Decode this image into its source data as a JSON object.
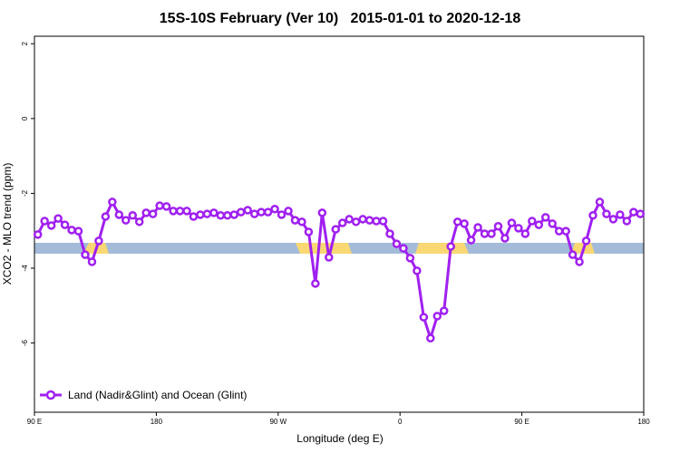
{
  "chart_data": {
    "type": "line",
    "title": "15S-10S February (Ver 10)   2015-01-01 to 2020-12-18",
    "x_label": "Longitude (deg E)",
    "y_label": "XCO2 - MLO trend (ppm)",
    "xlim": [
      90,
      540
    ],
    "xticks": [
      {
        "value": 90,
        "label": "90 E"
      },
      180,
      {
        "value": 270,
        "label": "90 W"
      },
      {
        "value": 360,
        "label": "0"
      },
      {
        "value": 450,
        "label": "90 E"
      },
      {
        "value": 540,
        "label": "180"
      }
    ],
    "ylim": [
      -7.85,
      2.2
    ],
    "yticks": [
      2,
      0,
      -2,
      -4,
      -6
    ],
    "legend": "bottom-left",
    "x": [
      92.5,
      97.5,
      102.5,
      107.5,
      112.5,
      117.5,
      122.5,
      127.5,
      132.5,
      137.5,
      142.5,
      147.5,
      152.5,
      157.5,
      162.5,
      167.5,
      172.5,
      177.5,
      182.5,
      187.5,
      192.5,
      197.5,
      202.5,
      207.5,
      212.5,
      217.5,
      222.5,
      227.5,
      232.5,
      237.5,
      242.5,
      247.5,
      252.5,
      257.5,
      262.5,
      267.5,
      272.5,
      277.5,
      282.5,
      287.5,
      292.5,
      297.5,
      302.5,
      307.5,
      312.5,
      317.5,
      322.5,
      327.5,
      332.5,
      337.5,
      342.5,
      347.5,
      352.5,
      357.5,
      362.5,
      367.5,
      372.5,
      377.5,
      382.5,
      387.5,
      392.5,
      397.5,
      402.5,
      407.5,
      412.5,
      417.5,
      422.5,
      427.5,
      432.5,
      437.5,
      442.5,
      447.5,
      452.5,
      457.5,
      462.5,
      467.5,
      472.5,
      477.5,
      482.5,
      487.5,
      492.5,
      497.5,
      502.5,
      507.5,
      512.5,
      517.5,
      522.5,
      527.5,
      532.5,
      537.5
    ],
    "series": [
      {
        "name": "Land (Nadir&Glint) and Ocean (Glint)",
        "color": "#a020f0",
        "values": [
          -3.1,
          -2.74,
          -2.86,
          -2.67,
          -2.84,
          -2.98,
          -3.01,
          -3.64,
          -3.83,
          -3.27,
          -2.62,
          -2.23,
          -2.57,
          -2.72,
          -2.59,
          -2.76,
          -2.52,
          -2.55,
          -2.33,
          -2.35,
          -2.47,
          -2.47,
          -2.47,
          -2.62,
          -2.57,
          -2.55,
          -2.52,
          -2.59,
          -2.59,
          -2.57,
          -2.5,
          -2.45,
          -2.55,
          -2.5,
          -2.5,
          -2.42,
          -2.57,
          -2.47,
          -2.72,
          -2.76,
          -3.03,
          -4.41,
          -2.52,
          -3.71,
          -2.96,
          -2.79,
          -2.69,
          -2.76,
          -2.69,
          -2.72,
          -2.74,
          -2.74,
          -3.08,
          -3.35,
          -3.47,
          -3.73,
          -4.07,
          -5.31,
          -5.87,
          -5.28,
          -5.14,
          -3.42,
          -2.76,
          -2.81,
          -3.25,
          -2.91,
          -3.08,
          -3.08,
          -2.88,
          -3.2,
          -2.79,
          -2.93,
          -3.08,
          -2.74,
          -2.84,
          -2.64,
          -2.81,
          -3.01,
          -3.01,
          -3.64,
          -3.83,
          -3.27,
          -2.59,
          -2.23,
          -2.55,
          -2.69,
          -2.57,
          -2.74,
          -2.5,
          -2.55
        ]
      }
    ]
  }
}
